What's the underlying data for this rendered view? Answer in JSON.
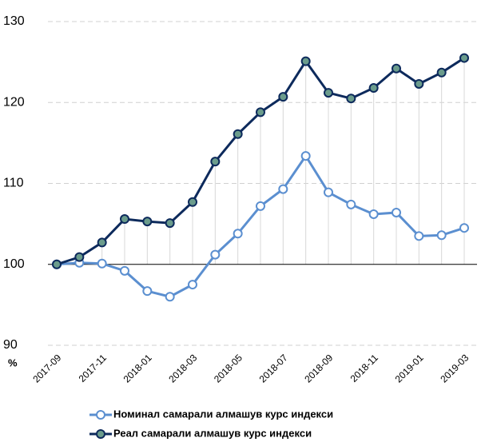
{
  "chart_data": {
    "type": "line",
    "y_label": "%",
    "categories": [
      "2017-09",
      null,
      "2017-11",
      null,
      "2018-01",
      null,
      "2018-03",
      null,
      "2018-05",
      null,
      "2018-07",
      null,
      "2018-09",
      null,
      "2018-11",
      null,
      "2019-01",
      null,
      "2019-03"
    ],
    "series": [
      {
        "name": "Номинал самарали алмашув курс индекси",
        "color": "#5b8fd0",
        "marker_color": "#ffffff",
        "values": [
          100,
          100.2,
          100.1,
          99.2,
          96.7,
          96.0,
          97.5,
          101.2,
          103.8,
          107.2,
          109.3,
          113.4,
          108.9,
          107.4,
          106.2,
          106.4,
          103.5,
          103.6,
          104.5
        ]
      },
      {
        "name": "Реал самарали алмашув курс индекси",
        "color": "#0d2a5c",
        "marker_color": "#6b9c8c",
        "values": [
          100,
          100.9,
          102.7,
          105.6,
          105.3,
          105.1,
          107.7,
          112.7,
          116.1,
          118.8,
          120.7,
          125.1,
          121.2,
          120.5,
          121.8,
          124.2,
          122.3,
          123.7,
          125.5
        ]
      }
    ],
    "ylim": [
      90,
      130
    ],
    "yticks": [
      90,
      100,
      110,
      120,
      130
    ],
    "baseline": 100,
    "grid": true,
    "legend": "bottom"
  }
}
